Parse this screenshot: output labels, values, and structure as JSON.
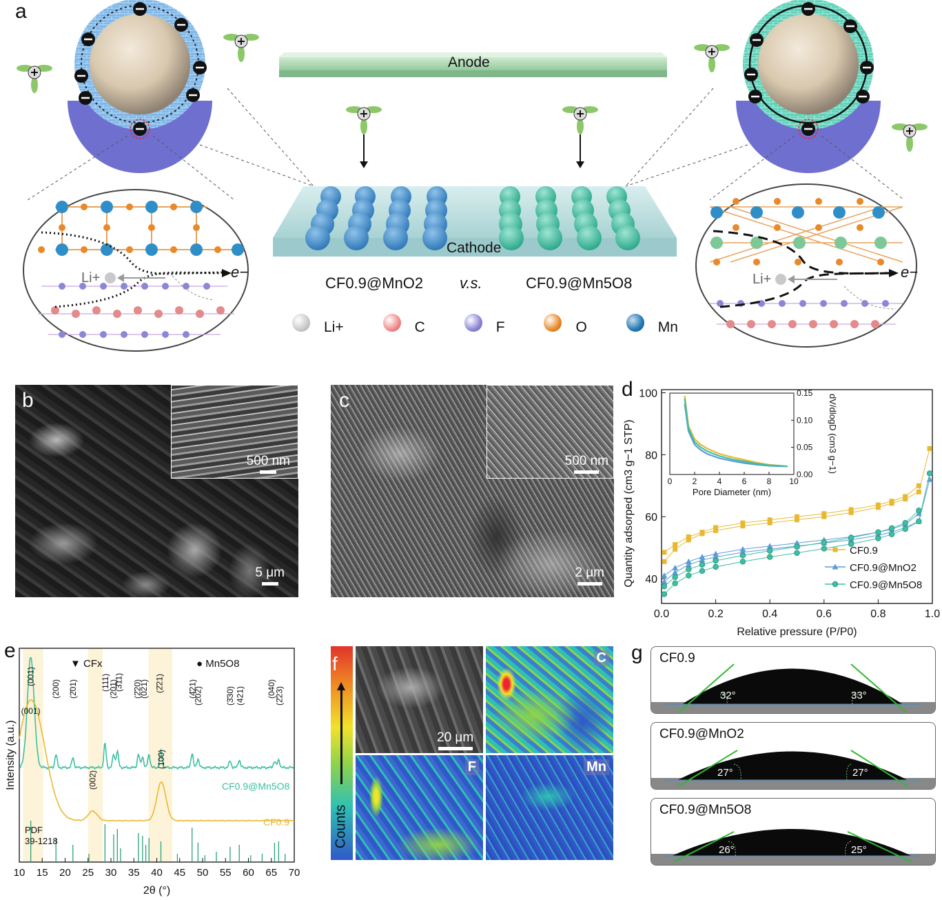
{
  "panels": {
    "a": "a",
    "b": "b",
    "c": "c",
    "d": "d",
    "e": "e",
    "f": "f",
    "g": "g"
  },
  "panel_a": {
    "anode": "Anode",
    "cathode": "Cathode",
    "compare_left": "CF0.9@MnO2",
    "compare_vs": "v.s.",
    "compare_right": "CF0.9@Mn5O8",
    "electron": "e−",
    "lithium": "Li+",
    "legend": [
      {
        "label": "Li+",
        "color": "#c9c9c9"
      },
      {
        "label": "C",
        "color": "#f08a8a"
      },
      {
        "label": "F",
        "color": "#8c86d6"
      },
      {
        "label": "O",
        "color": "#e8892a"
      },
      {
        "label": "Mn",
        "color": "#1f78b4"
      }
    ]
  },
  "panel_b": {
    "inset_scale": "500 nm",
    "main_scale": "5 μm"
  },
  "panel_c": {
    "inset_scale": "500 nm",
    "main_scale": "2 μm"
  },
  "panel_f": {
    "scale": "20 μm",
    "maps": [
      "C",
      "F",
      "Mn"
    ],
    "colorbar_label": "Counts"
  },
  "panel_g": {
    "samples": [
      {
        "name": "CF0.9",
        "left_angle": "32°",
        "right_angle": "33°"
      },
      {
        "name": "CF0.9@MnO2",
        "left_angle": "27°",
        "right_angle": "27°"
      },
      {
        "name": "CF0.9@Mn5O8",
        "left_angle": "26°",
        "right_angle": "25°"
      }
    ]
  },
  "chart_data": [
    {
      "panel": "d",
      "type": "scatter",
      "xlabel": "Relative pressure (P/P0)",
      "ylabel": "Quantity adsorped (cm3 g−1 STP)",
      "xlim": [
        0.0,
        1.0
      ],
      "ylim": [
        32,
        101
      ],
      "xticks": [
        "0.0",
        "0.2",
        "0.4",
        "0.6",
        "0.8",
        "1.0"
      ],
      "yticks": [
        "40",
        "60",
        "80",
        "100"
      ],
      "legend_position": "bottom-right",
      "series": [
        {
          "name": "CF0.9",
          "color": "#e8b830",
          "marker": "square",
          "x": [
            0.01,
            0.05,
            0.1,
            0.15,
            0.2,
            0.3,
            0.4,
            0.5,
            0.6,
            0.7,
            0.8,
            0.85,
            0.9,
            0.95,
            0.99
          ],
          "adsorption": [
            45.5,
            49.5,
            52.5,
            54.5,
            55.5,
            57.0,
            58.0,
            59.0,
            60.0,
            61.3,
            63.0,
            64.3,
            65.7,
            68.0,
            82.0
          ],
          "desorption": [
            48.5,
            51.0,
            53.5,
            55.0,
            56.5,
            58.0,
            59.0,
            60.0,
            61.0,
            62.3,
            63.8,
            65.0,
            66.5,
            70.0
          ]
        },
        {
          "name": "CF0.9@MnO2",
          "color": "#5b9bd8",
          "marker": "triangle",
          "x": [
            0.01,
            0.05,
            0.1,
            0.15,
            0.2,
            0.3,
            0.4,
            0.5,
            0.6,
            0.7,
            0.8,
            0.85,
            0.9,
            0.95,
            0.99
          ],
          "adsorption": [
            39.0,
            42.0,
            44.5,
            46.0,
            47.0,
            48.5,
            49.5,
            50.5,
            51.5,
            52.5,
            54.0,
            55.0,
            56.5,
            58.5,
            72.0
          ],
          "desorption": [
            41.0,
            43.5,
            45.5,
            47.0,
            48.0,
            49.5,
            50.5,
            51.5,
            52.5,
            53.5,
            55.0,
            56.0,
            57.5,
            61.0
          ]
        },
        {
          "name": "CF0.9@Mn5O8",
          "color": "#3bbfa3",
          "marker": "circle",
          "x": [
            0.01,
            0.05,
            0.1,
            0.15,
            0.2,
            0.3,
            0.4,
            0.5,
            0.6,
            0.7,
            0.8,
            0.85,
            0.9,
            0.95,
            0.99
          ],
          "adsorption": [
            35.0,
            38.5,
            41.0,
            42.5,
            43.8,
            45.5,
            47.0,
            48.3,
            49.7,
            51.2,
            53.0,
            54.3,
            56.0,
            58.5,
            74.0
          ],
          "desorption": [
            37.5,
            40.5,
            43.0,
            44.5,
            45.8,
            47.5,
            49.0,
            50.3,
            51.7,
            53.2,
            55.0,
            56.3,
            58.0,
            62.0
          ]
        }
      ]
    },
    {
      "panel": "d-inset",
      "type": "line",
      "xlabel": "Pore Diameter (nm)",
      "ylabel": "dV/dlogD (cm3 g−1)",
      "xlim": [
        0,
        10
      ],
      "ylim": [
        0,
        0.15
      ],
      "xticks": [
        "0",
        "2",
        "4",
        "6",
        "8",
        "10"
      ],
      "yticks": [
        "0.00",
        "0.05",
        "0.10",
        "0.15"
      ],
      "x": [
        1.2,
        1.5,
        2,
        2.5,
        3,
        4,
        5,
        6,
        7,
        8,
        9,
        9.5
      ],
      "series": [
        {
          "color": "#e8b830",
          "values": [
            0.145,
            0.09,
            0.065,
            0.055,
            0.048,
            0.038,
            0.032,
            0.027,
            0.022,
            0.018,
            0.016,
            0.015
          ]
        },
        {
          "color": "#5b9bd8",
          "values": [
            0.13,
            0.08,
            0.055,
            0.045,
            0.038,
            0.03,
            0.025,
            0.021,
            0.018,
            0.016,
            0.015,
            0.015
          ]
        },
        {
          "color": "#3bbfa3",
          "values": [
            0.14,
            0.085,
            0.06,
            0.05,
            0.043,
            0.034,
            0.028,
            0.024,
            0.02,
            0.017,
            0.016,
            0.015
          ]
        }
      ]
    },
    {
      "panel": "e",
      "type": "line",
      "xlabel": "2θ (°)",
      "ylabel": "Intensity (a.u.)",
      "xlim": [
        10,
        70
      ],
      "xticks": [
        "10",
        "15",
        "20",
        "25",
        "30",
        "35",
        "40",
        "45",
        "50",
        "55",
        "60",
        "65",
        "70"
      ],
      "legend_items": [
        {
          "symbol": "▼",
          "label": "CFx"
        },
        {
          "symbol": "●",
          "label": "Mn5O8"
        }
      ],
      "series": [
        {
          "name": "CF0.9@Mn5O8",
          "color": "#3bbfa3",
          "peaks": [
            [
              12.5,
              1.0
            ],
            [
              18.0,
              0.12
            ],
            [
              21.7,
              0.09
            ],
            [
              28.7,
              0.22
            ],
            [
              30.6,
              0.12
            ],
            [
              31.4,
              0.15
            ],
            [
              36.0,
              0.12
            ],
            [
              36.9,
              0.1
            ],
            [
              38.3,
              0.12
            ],
            [
              40.9,
              0.16
            ],
            [
              47.7,
              0.13
            ],
            [
              49.0,
              0.08
            ],
            [
              56.0,
              0.06
            ],
            [
              58.0,
              0.07
            ],
            [
              65.7,
              0.06
            ],
            [
              66.6,
              0.07
            ]
          ]
        },
        {
          "name": "CF0.9",
          "color": "#e8b830",
          "peaks": [
            [
              12.6,
              1.0
            ],
            [
              26.0,
              0.08
            ],
            [
              41.0,
              0.32
            ]
          ]
        }
      ],
      "peak_labels": [
        "(001)",
        "(200)",
        "(2̄01)",
        "(111)",
        "(201)",
        "(3̄11)",
        "(2̄20)",
        "(021)",
        "(2̄21)",
        "(4̄21)",
        "(202)",
        "(3̄30)",
        "(421)",
        "(040)",
        "(2̄23)",
        "(001)",
        "(002)",
        "(100)"
      ],
      "reference_label": "PDF 39-1218",
      "reference_peaks": [
        [
          12.5,
          60
        ],
        [
          18.0,
          35
        ],
        [
          21.7,
          25
        ],
        [
          25.2,
          12
        ],
        [
          28.7,
          55
        ],
        [
          30.6,
          40
        ],
        [
          31.4,
          48
        ],
        [
          32.1,
          20
        ],
        [
          36.0,
          42
        ],
        [
          36.9,
          38
        ],
        [
          37.6,
          25
        ],
        [
          38.3,
          35
        ],
        [
          40.9,
          30
        ],
        [
          44.5,
          12
        ],
        [
          47.7,
          50
        ],
        [
          49.0,
          28
        ],
        [
          50.5,
          10
        ],
        [
          53.0,
          15
        ],
        [
          56.0,
          22
        ],
        [
          58.0,
          25
        ],
        [
          60.5,
          10
        ],
        [
          63.0,
          12
        ],
        [
          65.7,
          28
        ],
        [
          66.6,
          30
        ],
        [
          68.0,
          12
        ]
      ],
      "highlight_bands": [
        [
          10.8,
          15.2
        ],
        [
          25.0,
          28.2
        ],
        [
          38.2,
          43.4
        ]
      ]
    }
  ]
}
